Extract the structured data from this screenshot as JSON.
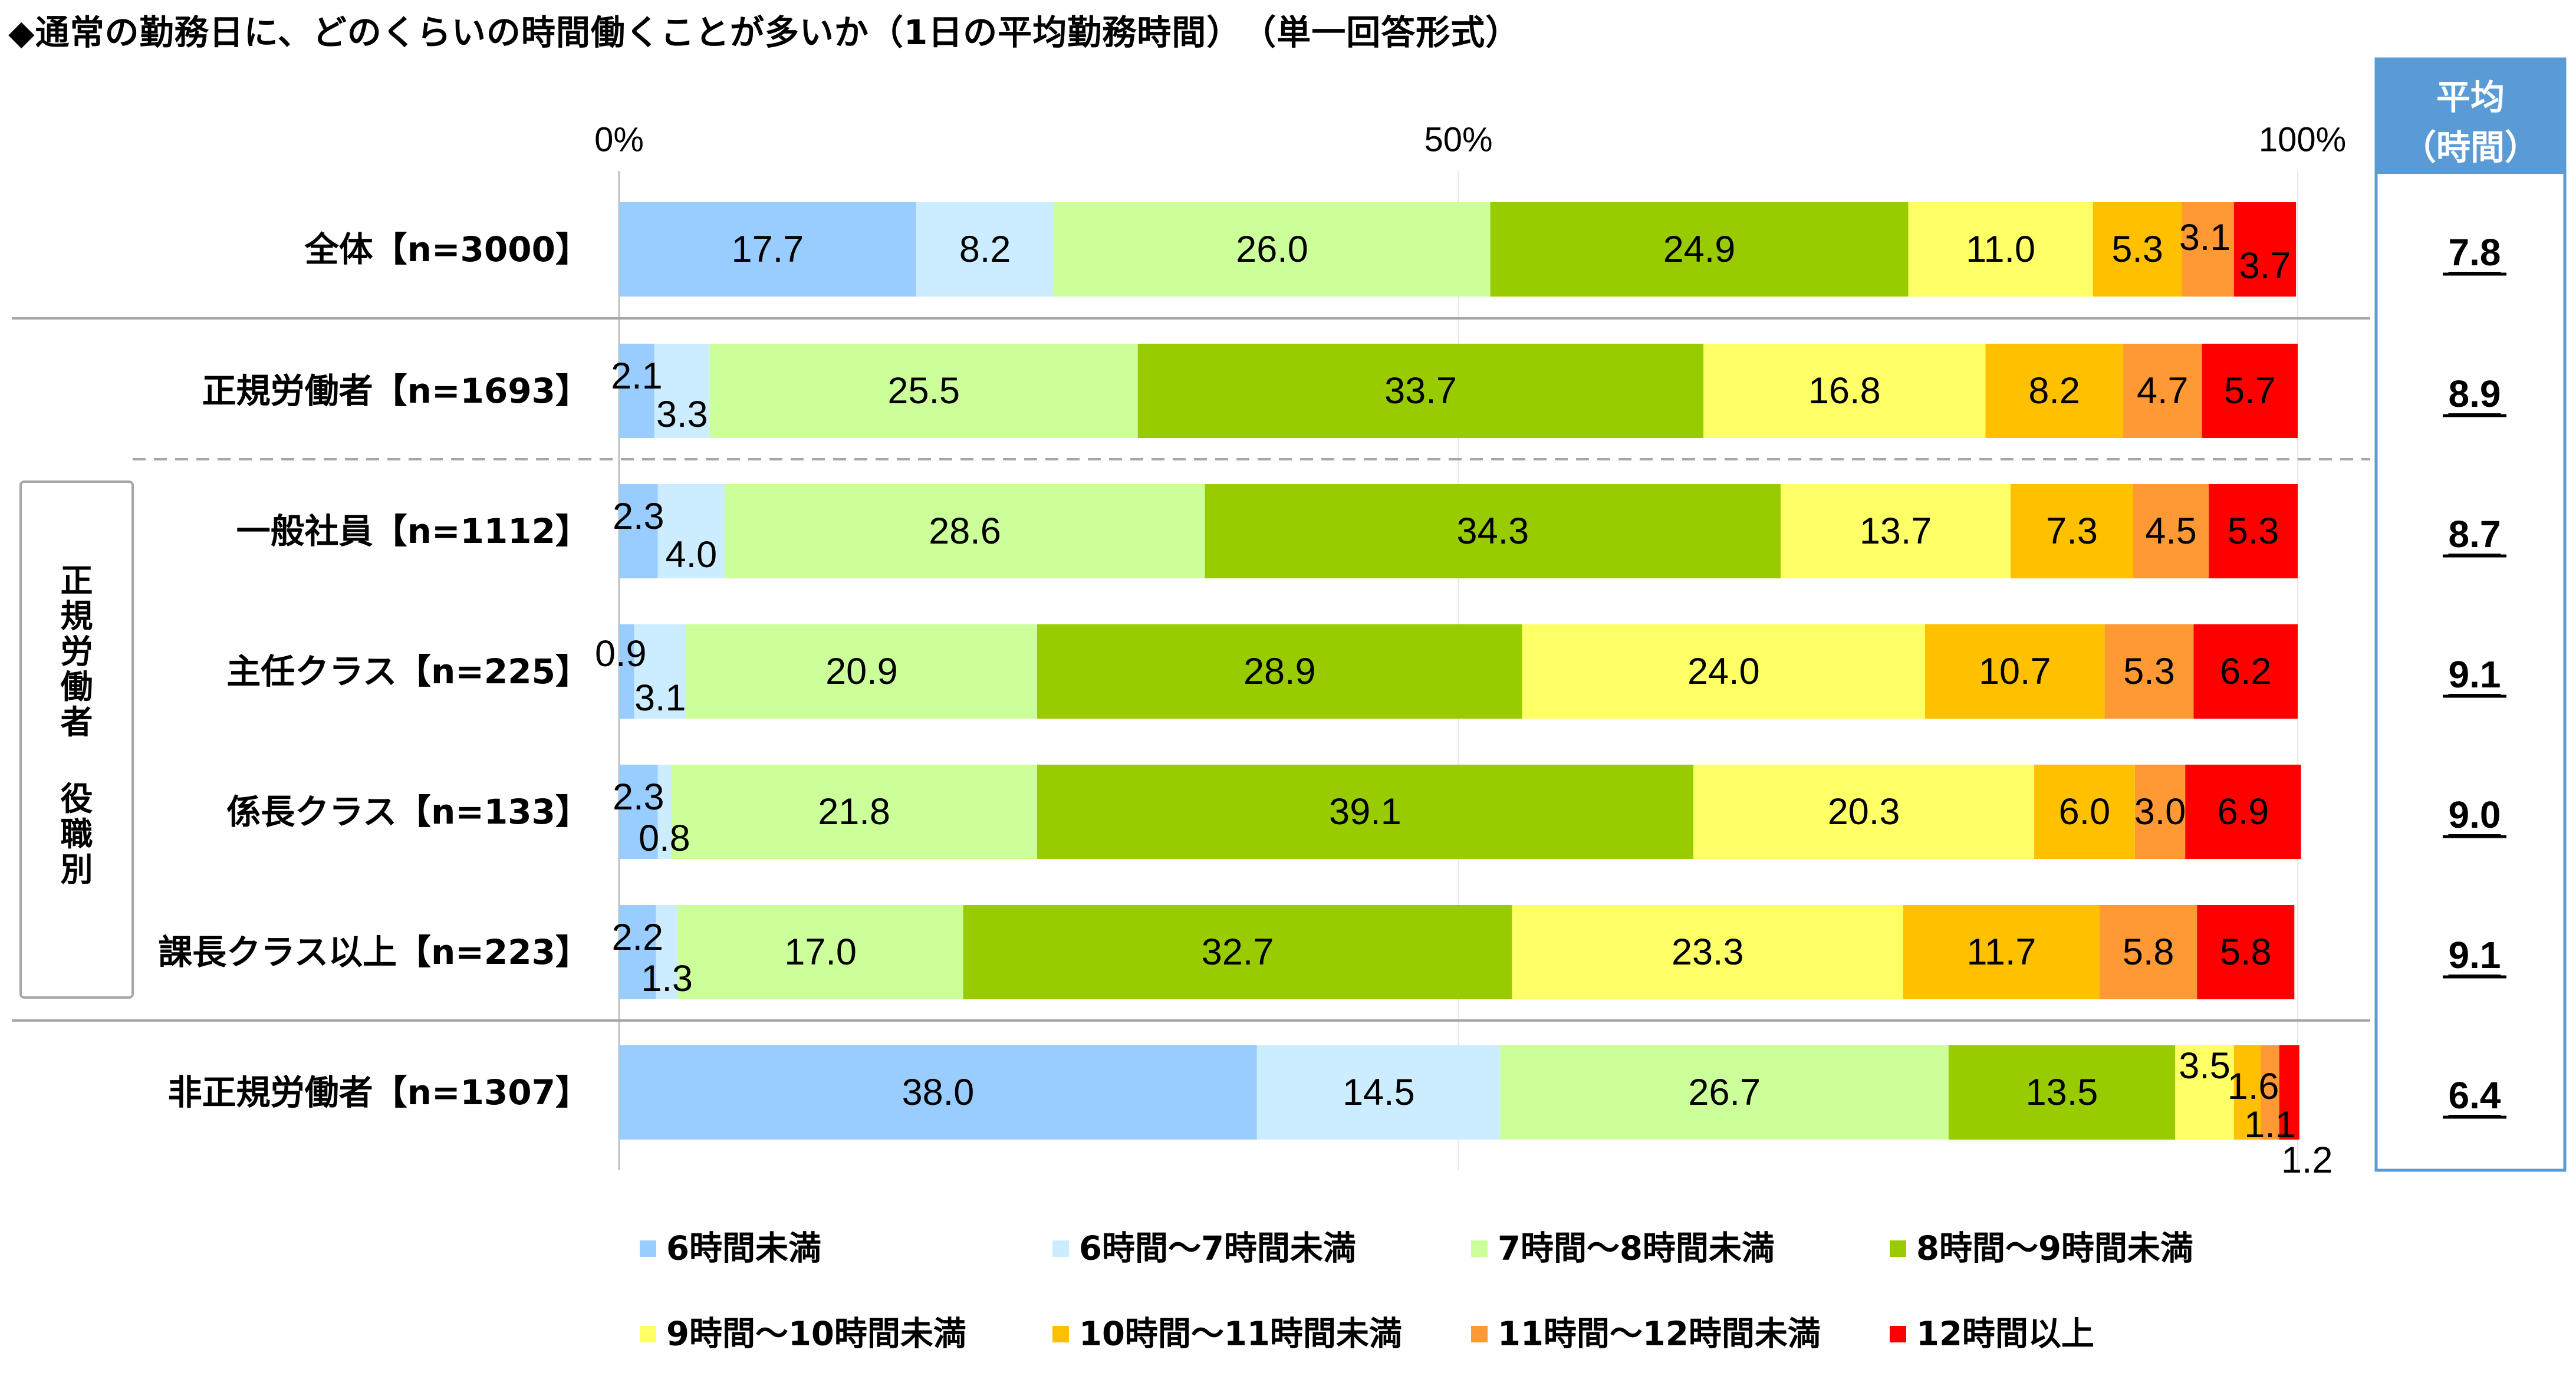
{
  "title": "◆通常の勤務日に、どのくらいの時間働くことが多いか（1日の平均勤務時間）　（単一回答形式）",
  "group_label": "正規労働者　役職別",
  "avg_header": [
    "平均",
    "（時間）"
  ],
  "chart_data": {
    "type": "bar",
    "orientation": "horizontal-stacked-100",
    "xlim": [
      0,
      100
    ],
    "x_ticks": [
      "0%",
      "50%",
      "100%"
    ],
    "categories": [
      "全体【n=3000】",
      "正規労働者【n=1693】",
      "一般社員【n=1112】",
      "主任クラス【n=225】",
      "係長クラス【n=133】",
      "課長クラス以上【n=223】",
      "非正規労働者【n=1307】"
    ],
    "series": [
      {
        "name": "6時間未満",
        "color": "#99CCFF",
        "values": [
          17.7,
          2.1,
          2.3,
          0.9,
          2.3,
          2.2,
          38.0
        ]
      },
      {
        "name": "6時間～7時間未満",
        "color": "#CCECFF",
        "values": [
          8.2,
          3.3,
          4.0,
          3.1,
          0.8,
          1.3,
          14.5
        ]
      },
      {
        "name": "7時間～8時間未満",
        "color": "#CCFF99",
        "values": [
          26.0,
          25.5,
          28.6,
          20.9,
          21.8,
          17.0,
          26.7
        ]
      },
      {
        "name": "8時間～9時間未満",
        "color": "#99CC00",
        "values": [
          24.9,
          33.7,
          34.3,
          28.9,
          39.1,
          32.7,
          13.5
        ]
      },
      {
        "name": "9時間～10時間未満",
        "color": "#FFFF66",
        "values": [
          11.0,
          16.8,
          13.7,
          24.0,
          20.3,
          23.3,
          3.5
        ]
      },
      {
        "name": "10時間～11時間未満",
        "color": "#FFC000",
        "values": [
          5.3,
          8.2,
          7.3,
          10.7,
          6.0,
          11.7,
          1.6
        ]
      },
      {
        "name": "11時間～12時間未満",
        "color": "#FF9933",
        "values": [
          3.1,
          4.7,
          4.5,
          5.3,
          3.0,
          5.8,
          1.1
        ]
      },
      {
        "name": "12時間以上",
        "color": "#FF0000",
        "values": [
          3.7,
          5.7,
          5.3,
          6.2,
          6.9,
          5.8,
          1.2
        ]
      }
    ],
    "averages": [
      "7.8",
      "8.9",
      "8.7",
      "9.1",
      "9.0",
      "9.1",
      "6.4"
    ],
    "accent_color": "#5B9BD5"
  }
}
